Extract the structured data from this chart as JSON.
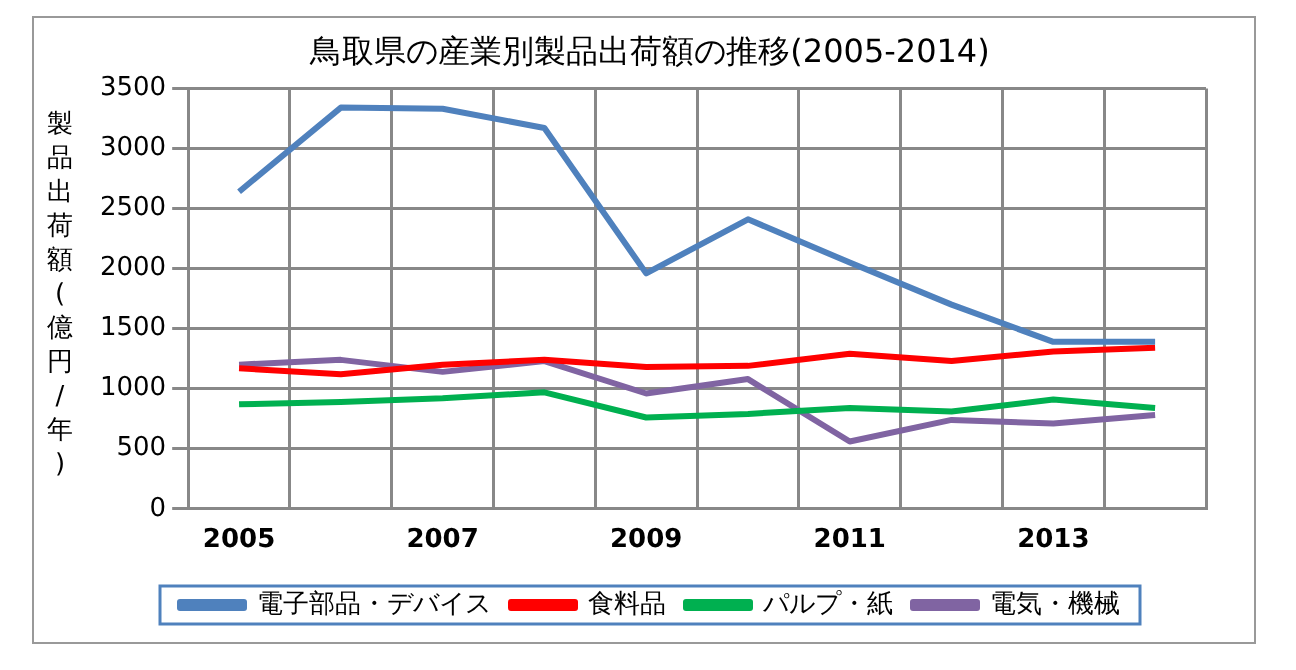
{
  "chart_data": {
    "type": "line",
    "title": "鳥取県の産業別製品出荷額の推移(2005-2014)",
    "ylabel": "製品出荷額(億円/年)",
    "categories": [
      "2005",
      null,
      "2007",
      null,
      "2009",
      null,
      "2011",
      null,
      "2013",
      null
    ],
    "series": [
      {
        "name": "電子部品・デバイス",
        "color": "#4f81bd",
        "values": [
          2640,
          3340,
          3330,
          3170,
          1960,
          2410,
          2050,
          1700,
          1390,
          1390
        ]
      },
      {
        "name": "食料品",
        "color": "#ff0000",
        "values": [
          1170,
          1120,
          1200,
          1240,
          1180,
          1190,
          1290,
          1230,
          1310,
          1340
        ]
      },
      {
        "name": "パルプ・紙",
        "color": "#00b050",
        "values": [
          870,
          890,
          920,
          970,
          760,
          790,
          840,
          810,
          910,
          840
        ]
      },
      {
        "name": "電気・機械",
        "color": "#8064a2",
        "values": [
          1200,
          1240,
          1140,
          1230,
          960,
          1080,
          560,
          740,
          710,
          780
        ]
      }
    ],
    "ylim": [
      0,
      3500
    ],
    "yticks": [
      0,
      500,
      1000,
      1500,
      2000,
      2500,
      3000,
      3500
    ],
    "grid": true,
    "legend": "bottom",
    "marker": "none",
    "line_style": "solid"
  }
}
